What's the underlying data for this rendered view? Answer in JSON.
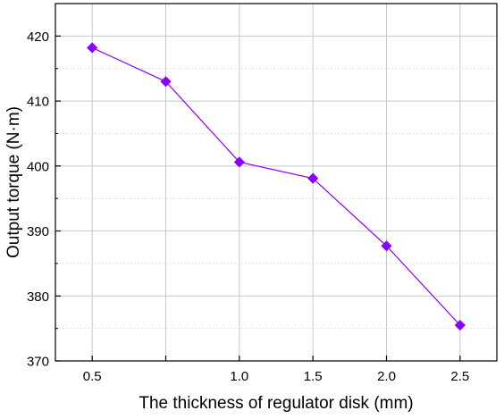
{
  "chart_data": {
    "type": "line",
    "title": "",
    "xlabel": "The thickness of regulator disk (mm)",
    "ylabel": "Output torque (N·m)",
    "x_categories": [
      "0.5",
      "0.8",
      "1.0",
      "1.5",
      "2.0",
      "2.5"
    ],
    "x_tick_labels": [
      "0.5",
      "1.0",
      "1.5",
      "2.0",
      "2.5"
    ],
    "y_ticks": [
      370,
      380,
      390,
      400,
      410,
      420
    ],
    "ylim": [
      370,
      425
    ],
    "grid": true,
    "legend": "none",
    "series": [
      {
        "x": [
          0.5,
          0.8,
          1.0,
          1.5,
          2.0,
          2.5
        ],
        "values": [
          418.2,
          413.0,
          400.6,
          398.1,
          387.7,
          375.5
        ],
        "color": "#8a00ff",
        "marker": "diamond"
      }
    ]
  }
}
